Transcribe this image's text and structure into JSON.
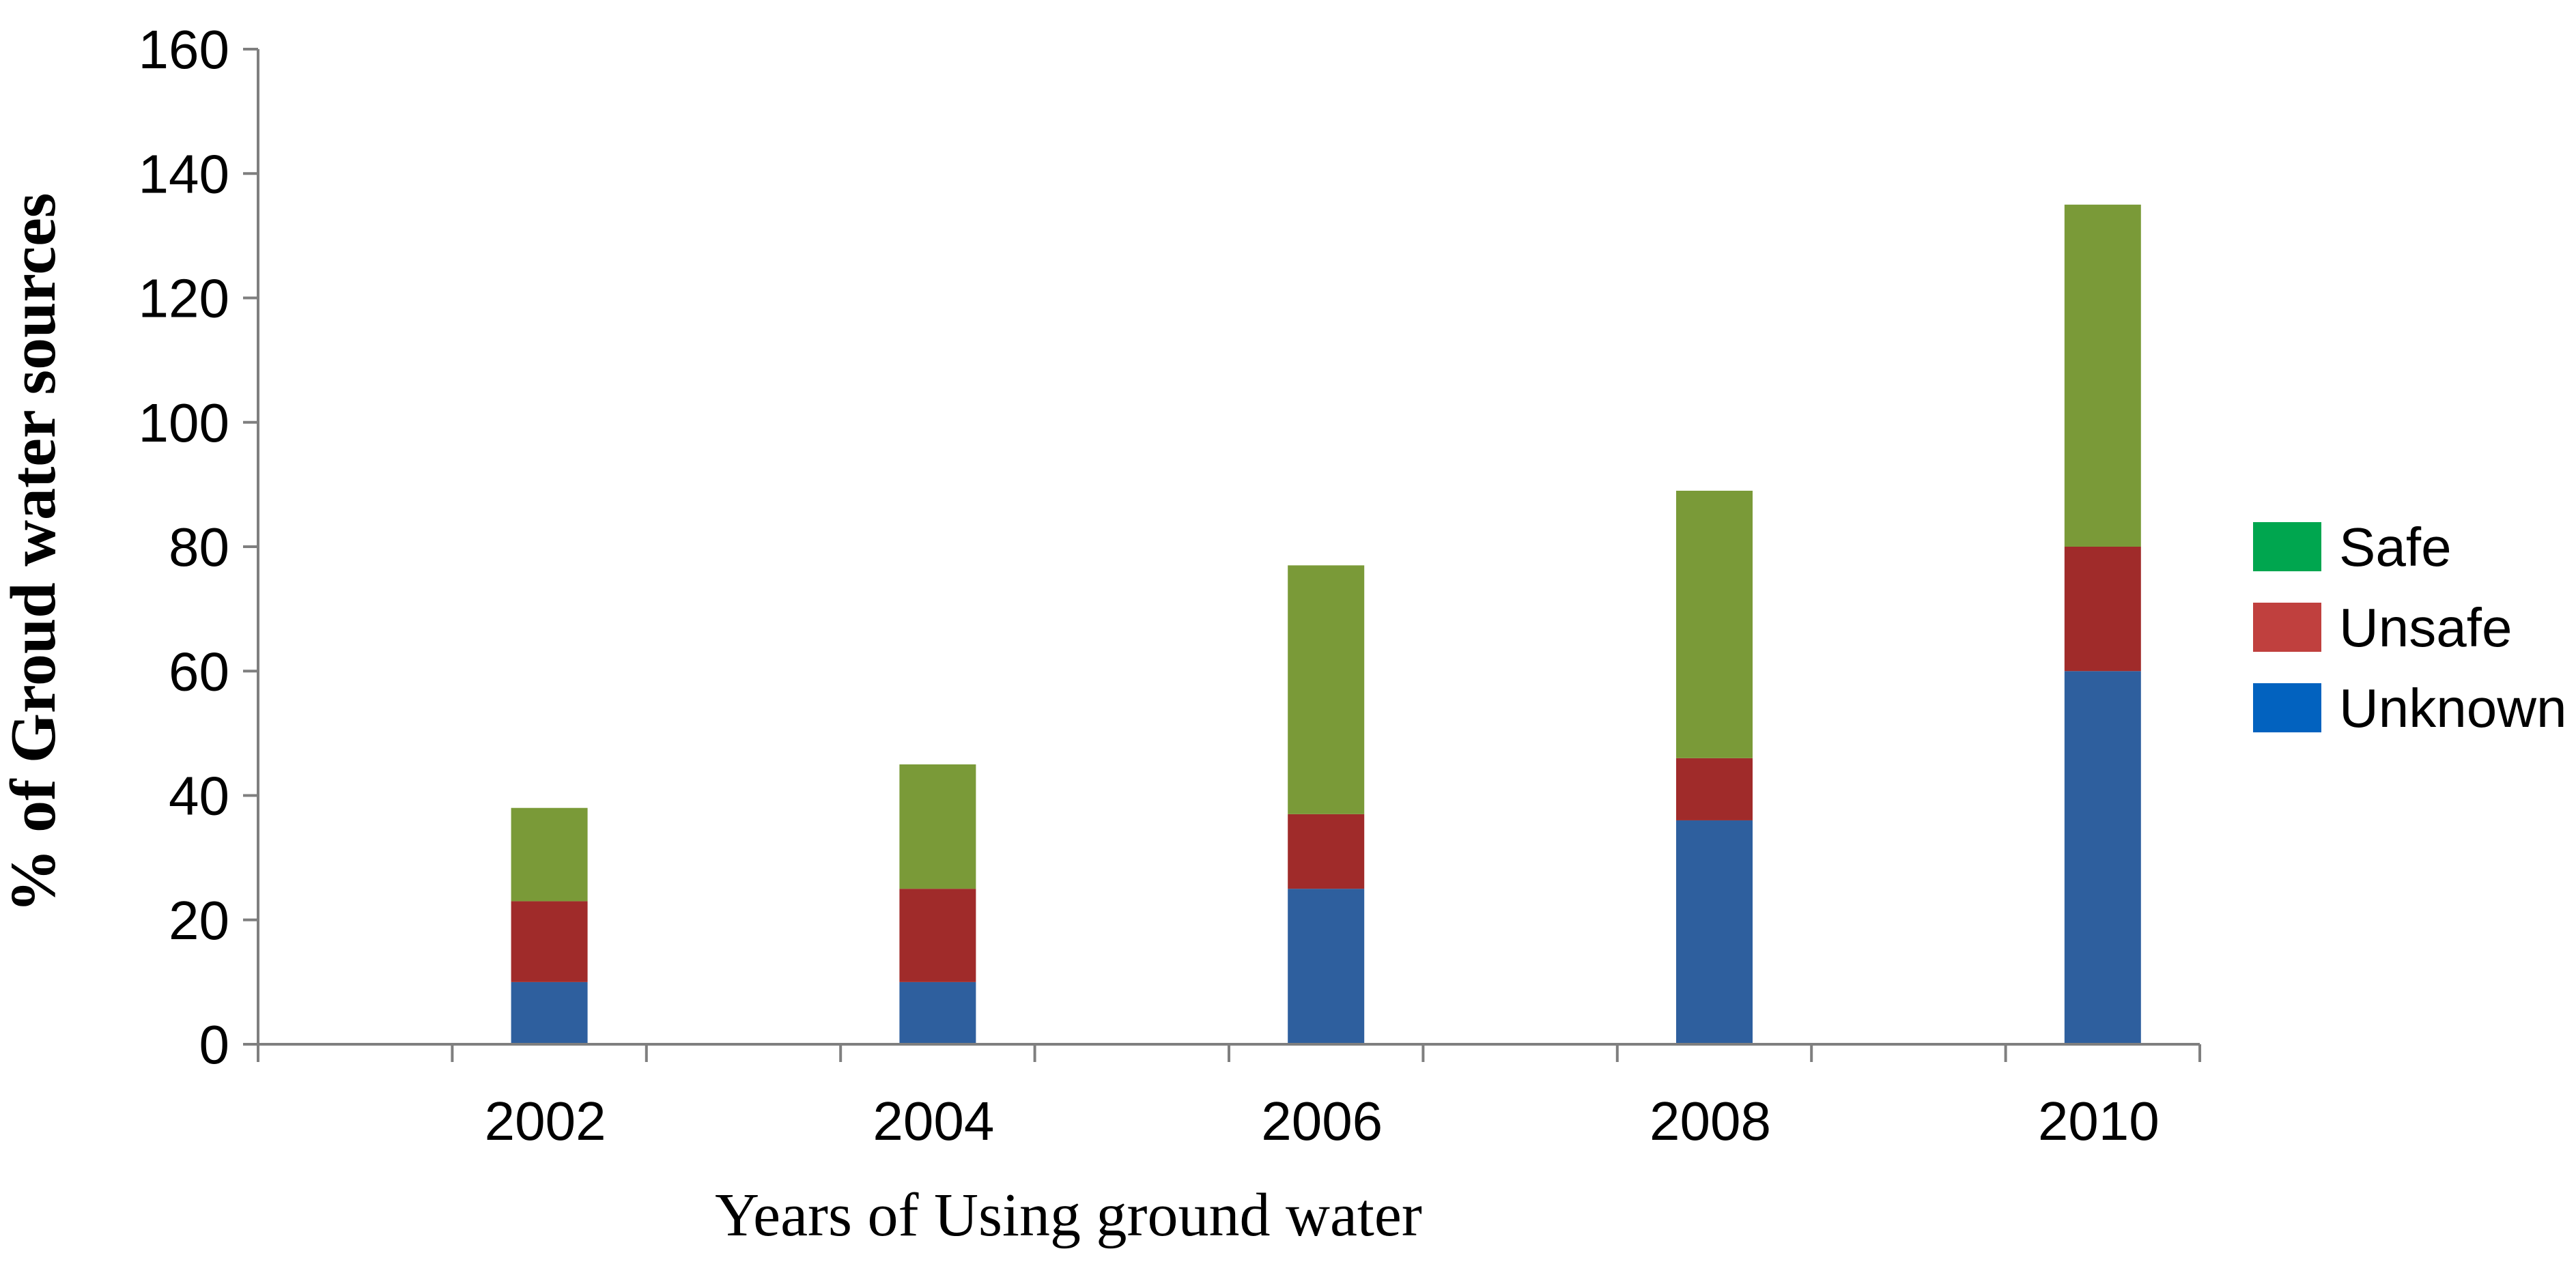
{
  "chart_data": {
    "type": "bar",
    "stacked": true,
    "categories": [
      "2002",
      "2004",
      "2006",
      "2008",
      "2010"
    ],
    "series": [
      {
        "name": "Unknown",
        "values": [
          10,
          10,
          25,
          36,
          60
        ]
      },
      {
        "name": "Unsafe",
        "values": [
          13,
          15,
          12,
          10,
          20
        ]
      },
      {
        "name": "Safe",
        "values": [
          15,
          20,
          40,
          43,
          55
        ]
      }
    ],
    "xlabel": "Years of Using ground water",
    "ylabel": "%  of Groud water sources",
    "ylim": [
      0,
      160
    ],
    "yticks": [
      0,
      20,
      40,
      60,
      80,
      100,
      120,
      140,
      160
    ],
    "grid": false,
    "legend_position": "right",
    "bar_colors": {
      "Unknown": "#2E5F9E",
      "Unsafe": "#A02B2A",
      "Safe": "#7A9A38"
    },
    "legend_colors": {
      "Safe": "#00A64F",
      "Unsafe": "#C0403E",
      "Unknown": "#0262BF"
    }
  }
}
